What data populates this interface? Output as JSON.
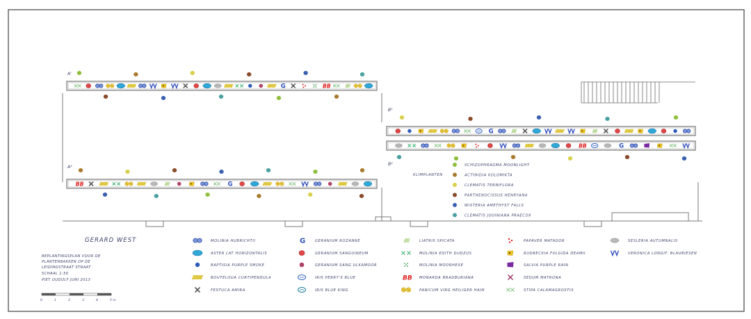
{
  "drawing": {
    "title": "GERARD WEST",
    "notes": [
      "BEPLANTINGSPLAN VOOR DE",
      "PLANTENBAKKEN OP DE",
      "LEIDINGSTRAAT STRAAT",
      "SCHAAL 1:50",
      "PIET OUDOLF   JUNI 2013"
    ],
    "scale_bar_labels": [
      "0",
      "1",
      "2",
      "3",
      "4",
      "5 m"
    ]
  },
  "bed_codes": [
    "A'",
    "A²",
    "B¹",
    "B²"
  ],
  "climbers": {
    "label": "KLIMPLANTEN",
    "items": [
      {
        "name": "SCHIZOPHRAGMA MOONLIGHT",
        "color": "#8fbf3c"
      },
      {
        "name": "ACTINIDIA KOLOMIKTA",
        "color": "#a87a2c"
      },
      {
        "name": "CLEMATIS TERNIFLORA",
        "color": "#d8d04a"
      },
      {
        "name": "PARTHENOCISSUS HENRYANA",
        "color": "#8a4a2a"
      },
      {
        "name": "WISTERIA AMETHYST FALLS",
        "color": "#3a5fb0"
      },
      {
        "name": "CLEMATIS JOUINIANA PRAECOX",
        "color": "#4aa0a0"
      }
    ]
  },
  "legend": [
    {
      "symbol": "molinia-hubricht",
      "label": "MOLINIA HUBRICHTII"
    },
    {
      "symbol": "aster-hortensis",
      "label": "ASTER LAT HORIZONTALIS"
    },
    {
      "symbol": "baptisia",
      "label": "BAPTISIA PURPLE SMOKE"
    },
    {
      "symbol": "bouteloua",
      "label": "BOUTELOUA CURTIPENDULA"
    },
    {
      "symbol": "festuca",
      "label": "FESTUCA AMIRA"
    },
    {
      "symbol": "geranium-rozanne",
      "label": "GERANIUM ROZANNE"
    },
    {
      "symbol": "geranium-sanguineum",
      "label": "GERANIUM SANGUINEUM"
    },
    {
      "symbol": "geranium-ulkamoor",
      "label": "GERANIUM SANG ULKAMOOR"
    },
    {
      "symbol": "iris-perry",
      "label": "IRIS PERRY'S BLUE"
    },
    {
      "symbol": "iris-blue-king",
      "label": "IRIS BLUE KING"
    },
    {
      "symbol": "liatris",
      "label": "LIATRIS SPICATA"
    },
    {
      "symbol": "molinia-edith",
      "label": "MOLINIA EDITH DUDZUS"
    },
    {
      "symbol": "molinia-moorhexe",
      "label": "MOLINIA MOORHEXE"
    },
    {
      "symbol": "monarda",
      "label": "MONARDA BRADBURIANA"
    },
    {
      "symbol": "panicum",
      "label": "PANICUM VIRG HEILIGER HAIN"
    },
    {
      "symbol": "papaver",
      "label": "PAPAVER MATADOR"
    },
    {
      "symbol": "rudbeckia",
      "label": "RUDBECKIA FULGIDA DEAMII"
    },
    {
      "symbol": "salvia",
      "label": "SALVIA PURPLE RAIN"
    },
    {
      "symbol": "sedum",
      "label": "SEDUM MATRONA"
    },
    {
      "symbol": "stipa",
      "label": "STIPA CALAMAGROSTIS"
    },
    {
      "symbol": "sesleria",
      "label": "SESLERIA AUTUMNALIS"
    },
    {
      "symbol": "veronica",
      "label": "VERONICA LONGIF. BLAUBIESEN"
    }
  ],
  "beds": [
    {
      "code": "A'",
      "sequence": [
        "stipa",
        "geranium-sanguineum",
        "molinia-hubricht",
        "panicum",
        "aster-hortensis",
        "bouteloua",
        "molinia-hubricht",
        "veronica",
        "rudbeckia",
        "veronica",
        "festuca",
        "geranium-sanguineum",
        "aster-hortensis",
        "sesleria",
        "bouteloua",
        "molinia-edith",
        "baptisia",
        "geranium-ulkamoor",
        "bouteloua",
        "geranium-rozanne",
        "festuca",
        "papaver",
        "molinia-moorhexe",
        "monarda",
        "stipa",
        "liatris",
        "panicum",
        "aster-hortensis"
      ]
    },
    {
      "code": "A²",
      "sequence": [
        "monarda",
        "festuca",
        "bouteloua",
        "molinia-edith",
        "panicum",
        "bouteloua",
        "sesleria",
        "liatris",
        "geranium-ulkamoor",
        "rudbeckia",
        "molinia-hubricht",
        "stipa",
        "geranium-rozanne",
        "geranium-sanguineum",
        "aster-hortensis",
        "bouteloua",
        "panicum",
        "stipa",
        "veronica",
        "molinia-hubricht",
        "geranium-ulkamoor",
        "bouteloua",
        "sesleria",
        "aster-hortensis"
      ]
    },
    {
      "code": "B¹",
      "sequence": [
        "geranium-sanguineum",
        "baptisia",
        "rudbeckia",
        "bouteloua",
        "panicum",
        "molinia-hubricht",
        "stipa",
        "iris-perry",
        "geranium-rozanne",
        "molinia-hubricht",
        "liatris",
        "festuca",
        "aster-hortensis",
        "veronica",
        "bouteloua",
        "veronica",
        "rudbeckia",
        "liatris",
        "festuca",
        "geranium-sanguineum",
        "bouteloua",
        "rudbeckia",
        "aster-hortensis",
        "geranium-sanguineum",
        "baptisia",
        "molinia-hubricht"
      ]
    },
    {
      "code": "B²",
      "sequence": [
        "sesleria",
        "molinia-edith",
        "molinia-hubricht",
        "stipa",
        "panicum",
        "rudbeckia",
        "papaver",
        "geranium-sanguineum",
        "veronica",
        "molinia-hubricht",
        "bouteloua",
        "sesleria",
        "aster-hortensis",
        "geranium-sanguineum",
        "monarda",
        "iris-perry",
        "sesleria",
        "geranium-rozanne",
        "molinia-hubricht",
        "salvia",
        "rudbeckia",
        "stipa",
        "veronica"
      ]
    }
  ]
}
